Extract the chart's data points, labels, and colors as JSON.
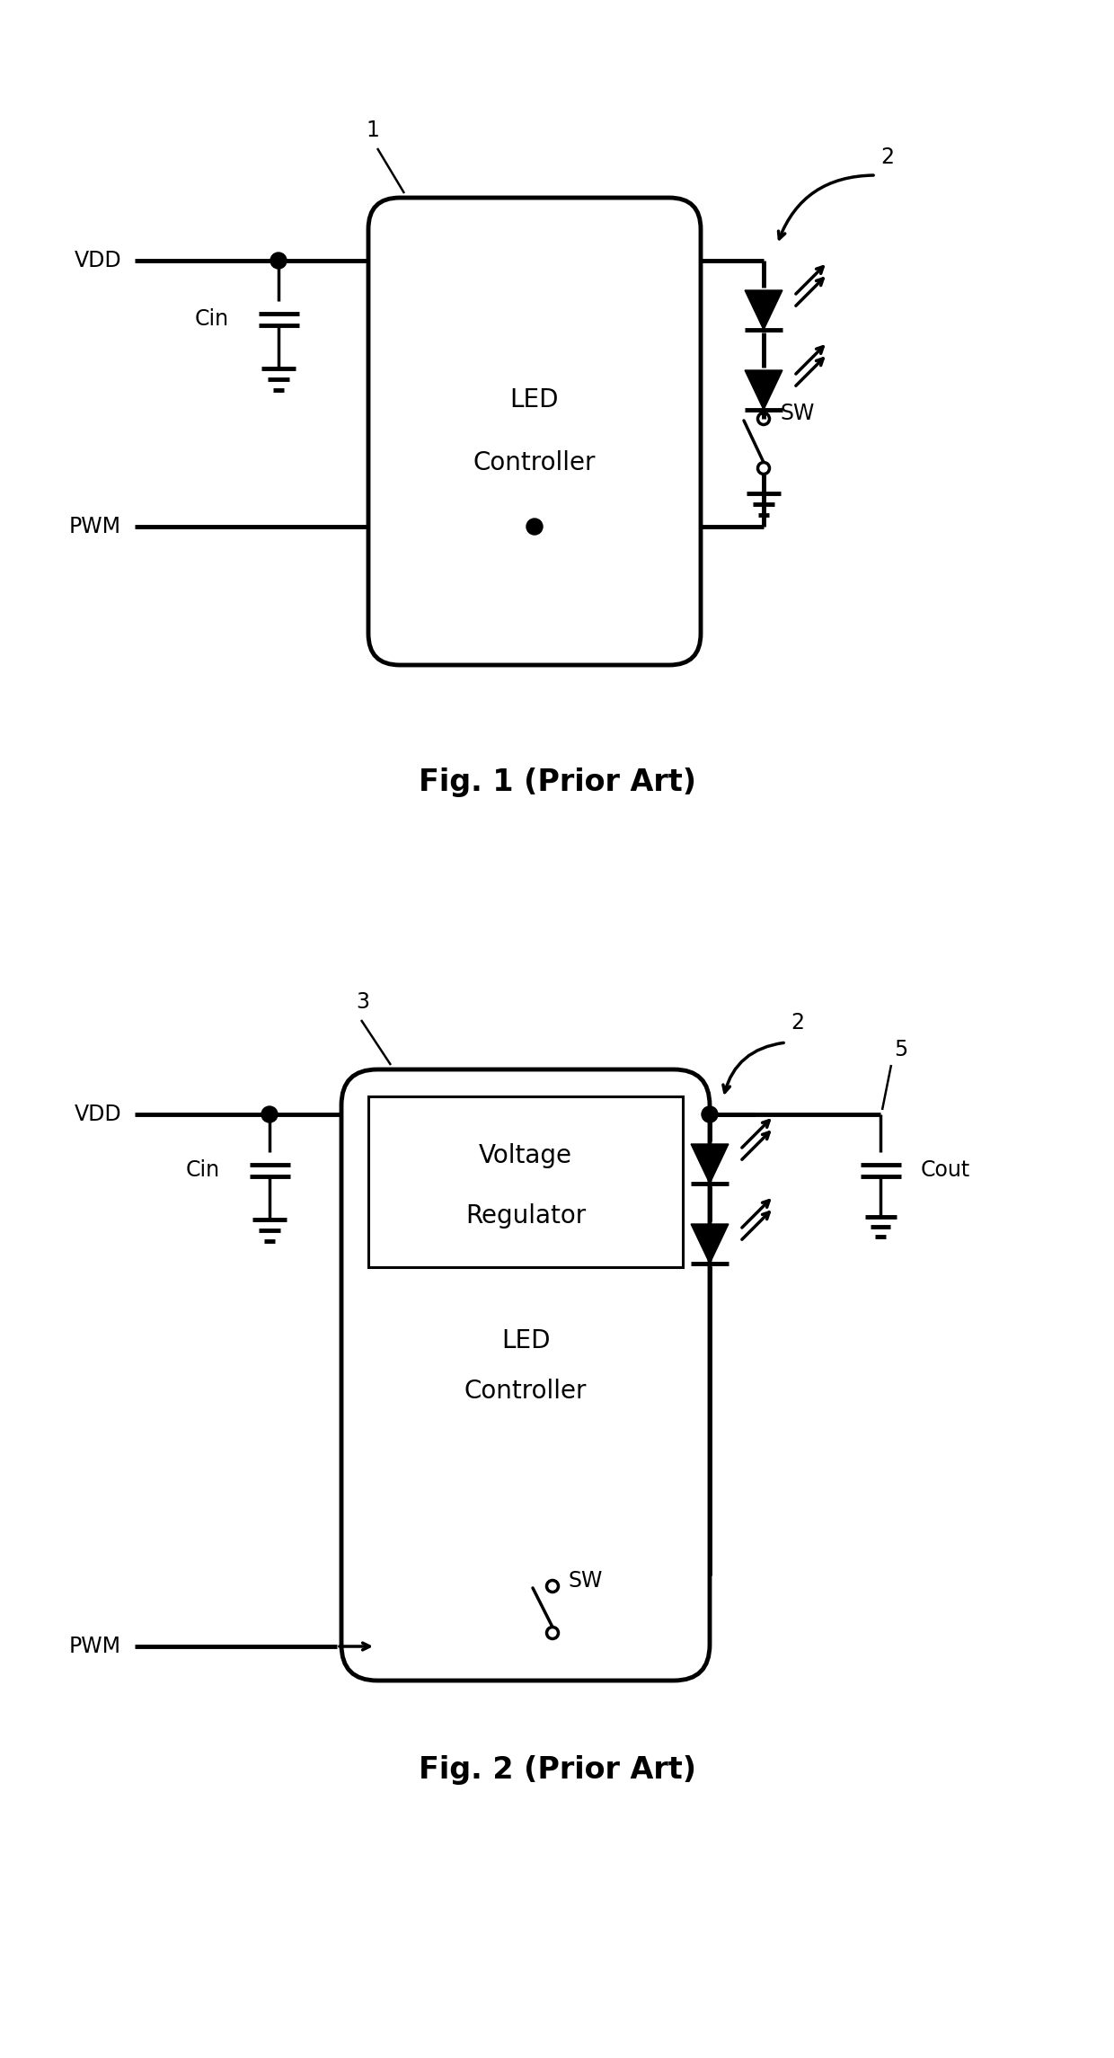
{
  "bg_color": "#ffffff",
  "line_color": "#000000",
  "fig1_title": "Fig. 1 (Prior Art)",
  "fig2_title": "Fig. 2 (Prior Art)",
  "fig1_label1": "1",
  "fig1_label2": "2",
  "fig1_box_text1": "LED",
  "fig1_box_text2": "Controller",
  "fig2_label3": "3",
  "fig2_label2": "2",
  "fig2_label5": "5",
  "fig2_vr_text1": "Voltage",
  "fig2_vr_text2": "Regulator",
  "fig2_box_text3": "LED",
  "fig2_box_text4": "Controller",
  "vdd_label": "VDD",
  "cin_label": "Cin",
  "pwm_label": "PWM",
  "sw_label": "SW",
  "cout_label": "Cout",
  "lw_thin": 1.8,
  "lw_med": 2.5,
  "lw_thick": 3.5,
  "led_size": 0.22,
  "font_main": 20,
  "font_label": 17,
  "font_caption": 24
}
